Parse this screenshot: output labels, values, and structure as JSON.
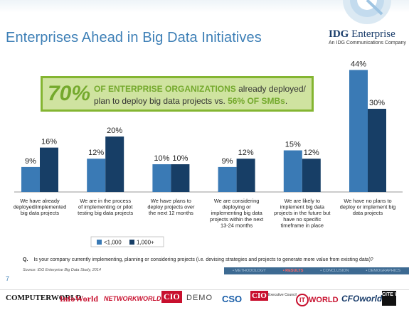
{
  "slide": {
    "title": "Enterprises Ahead in Big Data Initiatives",
    "page_number": "7",
    "source": "Source: IDG Enterprise Big Data Study, 2014",
    "question_prefix": "Q.",
    "question": "Is your company currently implementing, planning or considering projects (i.e. devising strategies and projects to generate more value from existing data)?"
  },
  "logo": {
    "brand_bold": "IDG",
    "brand_rest": " Enterprise",
    "tagline": "An IDG Communications Company"
  },
  "callout": {
    "big_percent": "70%",
    "line1_highlight": "OF ENTERPRISE ORGANIZATIONS",
    "line1_rest": " already deployed/",
    "line2_start": "plan to deploy big data projects vs. ",
    "line2_highlight": "56% OF SMBs",
    "line2_end": "."
  },
  "navigation": {
    "items": [
      {
        "label": "• METHODOLOGY",
        "active": false
      },
      {
        "label": "• RESULTS",
        "active": true
      },
      {
        "label": "• CONCLUSION",
        "active": false
      },
      {
        "label": "• DEMOGRAPHICS",
        "active": false
      }
    ]
  },
  "footer_brands": {
    "computerworld": "COMPUTERWORLD",
    "infoworld": "InfoWorld",
    "networkworld": "NETWORKWORLD",
    "cio": "CIO",
    "demo": "DEMO",
    "cso": "CSO",
    "cio_council": "CIO",
    "cio_council_sub": "Executive Council",
    "itworld_ring": "IT",
    "itworld_rest": "WORLD",
    "cfoworld": "CFOworld",
    "citeworld": "CITE WORLD"
  },
  "colors": {
    "series_small": "#3a7ab5",
    "series_large": "#173e66",
    "title": "#3d7fb6",
    "callout_bg": "#cfe3a0",
    "callout_border": "#84b531",
    "callout_text_accent": "#74a92d"
  },
  "chart_data": {
    "type": "bar",
    "categories": [
      [
        "We have already",
        "deployed/implemented",
        "big data projects"
      ],
      [
        "We are in the process",
        "of implementing or pilot",
        "testing big data projects"
      ],
      [
        "We have plans to",
        "deploy projects over",
        "the next 12 months"
      ],
      [
        "We are considering",
        "deploying or",
        "implementing big data",
        "projects within the next",
        "13-24 months"
      ],
      [
        "We are likely to",
        "implement big data",
        "projects in the future but",
        "have no specific",
        "timeframe in place"
      ],
      [
        "We have no plans to",
        "deploy or implement big",
        "data projects"
      ]
    ],
    "series": [
      {
        "name": "<1,000",
        "values": [
          9,
          12,
          10,
          9,
          15,
          44
        ]
      },
      {
        "name": "1,000+",
        "values": [
          16,
          20,
          10,
          12,
          12,
          30
        ]
      }
    ],
    "value_suffix": "%",
    "legend_position": "bottom"
  }
}
